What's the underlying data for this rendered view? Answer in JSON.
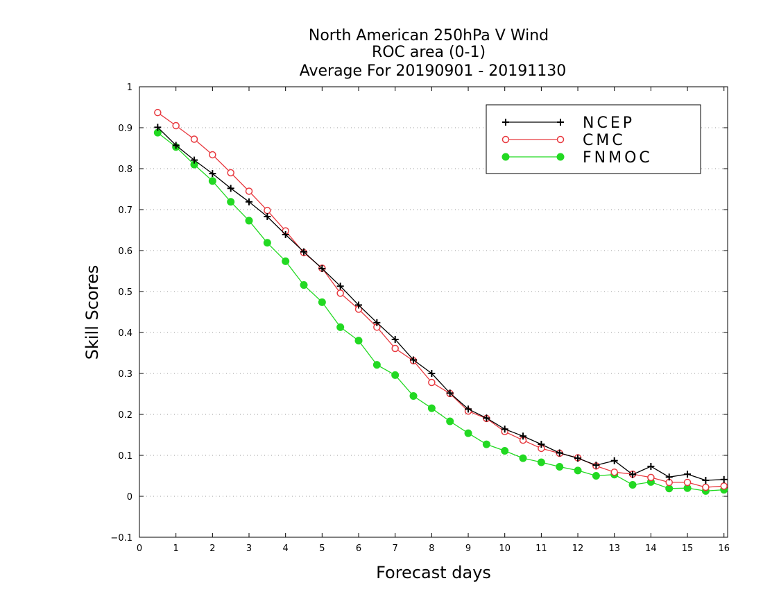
{
  "chart_data": {
    "type": "line",
    "title": [
      "North American 250hPa V Wind",
      "ROC area (0-1)",
      "Average For 20190901 - 20191130"
    ],
    "xlabel": "Forecast days",
    "ylabel": "Skill Scores",
    "xlim": [
      0,
      16.1
    ],
    "ylim": [
      -0.1,
      1
    ],
    "xticks": [
      "0",
      "1",
      "2",
      "3",
      "4",
      "5",
      "6",
      "7",
      "8",
      "9",
      "10",
      "11",
      "12",
      "13",
      "14",
      "15",
      "16"
    ],
    "yticks": [
      "−0.1",
      "0",
      "0.1",
      "0.2",
      "0.3",
      "0.4",
      "0.5",
      "0.6",
      "0.7",
      "0.8",
      "0.9",
      "1"
    ],
    "grid": "horizontal dotted",
    "legend_position": "top-right",
    "x": [
      0.5,
      1.0,
      1.5,
      2.0,
      2.5,
      3.0,
      3.5,
      4.0,
      4.5,
      5.0,
      5.5,
      6.0,
      6.5,
      7.0,
      7.5,
      8.0,
      8.5,
      9.0,
      9.5,
      10.0,
      10.5,
      11.0,
      11.5,
      12.0,
      12.5,
      13.0,
      13.5,
      14.0,
      14.5,
      15.0,
      15.5,
      16.0
    ],
    "series": [
      {
        "name": "NCEP",
        "color": "#000000",
        "marker": "plus",
        "values": [
          0.901,
          0.857,
          0.821,
          0.788,
          0.752,
          0.719,
          0.683,
          0.639,
          0.597,
          0.556,
          0.513,
          0.467,
          0.424,
          0.383,
          0.333,
          0.3,
          0.252,
          0.213,
          0.191,
          0.164,
          0.147,
          0.127,
          0.106,
          0.093,
          0.076,
          0.087,
          0.053,
          0.073,
          0.047,
          0.054,
          0.039,
          0.041
        ]
      },
      {
        "name": "CMC",
        "color": "#e8393f",
        "marker": "open-circle",
        "values": [
          0.937,
          0.905,
          0.872,
          0.834,
          0.79,
          0.745,
          0.698,
          0.648,
          0.595,
          0.557,
          0.496,
          0.457,
          0.413,
          0.361,
          0.331,
          0.278,
          0.251,
          0.208,
          0.19,
          0.158,
          0.137,
          0.117,
          0.105,
          0.094,
          0.074,
          0.059,
          0.054,
          0.046,
          0.034,
          0.034,
          0.022,
          0.025
        ]
      },
      {
        "name": "FNMOC",
        "color": "#22d922",
        "marker": "filled-circle",
        "values": [
          0.888,
          0.853,
          0.81,
          0.77,
          0.719,
          0.673,
          0.619,
          0.574,
          0.516,
          0.474,
          0.413,
          0.38,
          0.321,
          0.296,
          0.245,
          0.215,
          0.183,
          0.154,
          0.127,
          0.111,
          0.093,
          0.083,
          0.072,
          0.063,
          0.05,
          0.053,
          0.028,
          0.035,
          0.019,
          0.02,
          0.013,
          0.016
        ]
      }
    ]
  }
}
